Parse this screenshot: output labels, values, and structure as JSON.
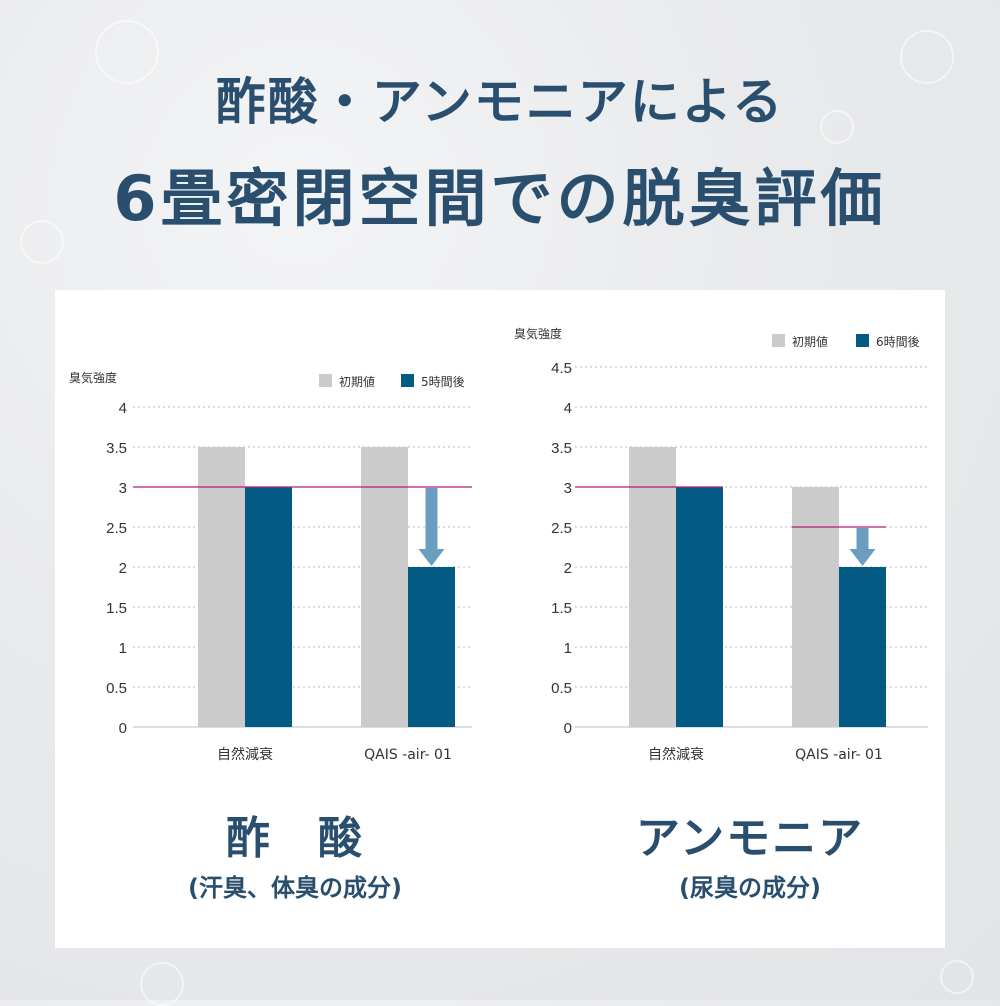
{
  "title_line1": "酢酸・アンモニアによる",
  "title_line2": "6畳密閉空間での脱臭評価",
  "colors": {
    "title": "#2a4f6e",
    "initial": "#cbcbcb",
    "after": "#035b84",
    "threshold": "#b01e7a",
    "arrow": "#6b9dc1"
  },
  "chart_data": [
    {
      "type": "bar",
      "ylabel": "臭気強度",
      "ylim": [
        0,
        4
      ],
      "ytick_labels": [
        "0",
        "0.5",
        "1",
        "1.5",
        "2",
        "2.5",
        "3",
        "3.5",
        "4"
      ],
      "categories": [
        "自然減衰",
        "QAIS -air- 01"
      ],
      "series": [
        {
          "name": "初期値",
          "values": [
            3.5,
            3.5
          ]
        },
        {
          "name": "5時間後",
          "values": [
            3.0,
            2.0
          ]
        }
      ],
      "threshold": 3.0,
      "arrow": {
        "from": 3.0,
        "to": 2.0
      },
      "grid": true,
      "legend": "top-right",
      "caption_main": "酢　酸",
      "caption_sub": "(汗臭、体臭の成分)"
    },
    {
      "type": "bar",
      "ylabel": "臭気強度",
      "ylim": [
        0,
        4.5
      ],
      "ytick_labels": [
        "0",
        "0.5",
        "1",
        "1.5",
        "2",
        "2.5",
        "3",
        "3.5",
        "4",
        "4.5"
      ],
      "categories": [
        "自然減衰",
        "QAIS -air- 01"
      ],
      "series": [
        {
          "name": "初期値",
          "values": [
            3.5,
            3.0
          ]
        },
        {
          "name": "6時間後",
          "values": [
            3.0,
            2.0
          ]
        }
      ],
      "threshold": 3.0,
      "threshold2": 2.5,
      "arrow": {
        "from": 2.5,
        "to": 2.0
      },
      "grid": true,
      "legend": "top-right",
      "caption_main": "アンモニア",
      "caption_sub": "(尿臭の成分)"
    }
  ]
}
